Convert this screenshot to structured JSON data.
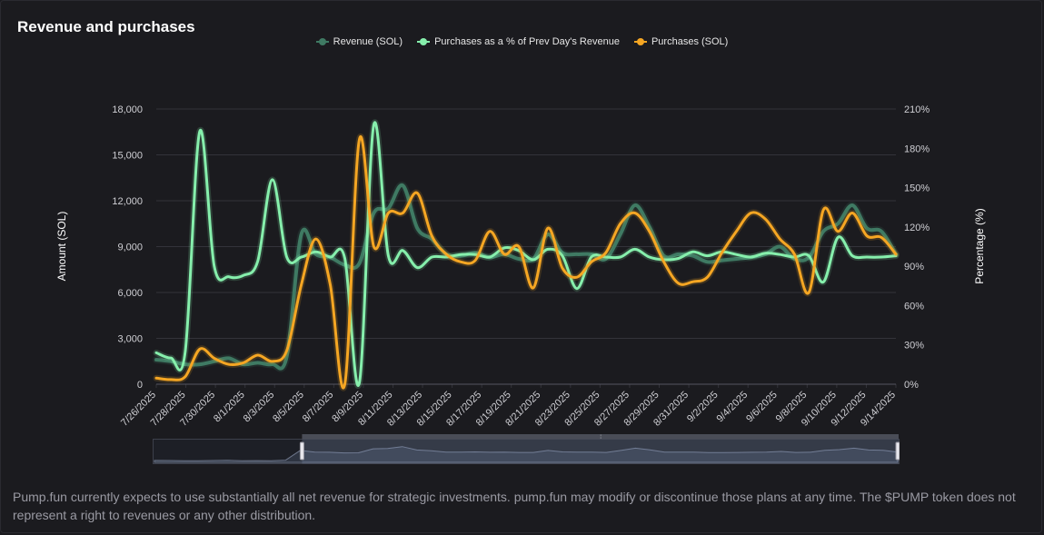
{
  "page": {
    "title": "Revenue and purchases"
  },
  "footnote": "Pump.fun currently expects to use substantially all net revenue for strategic investments. pump.fun may modify or discontinue those plans at any time. The $PUMP token does not represent a right to revenues or any other distribution.",
  "chart_data": {
    "type": "line",
    "title": "Revenue and purchases",
    "legend_position": "top-center",
    "grid": true,
    "y_left": {
      "label": "Amount (SOL)",
      "range": [
        0,
        18000
      ],
      "ticks": [
        "0",
        "3,000",
        "6,000",
        "9,000",
        "12,000",
        "15,000",
        "18,000"
      ]
    },
    "y_right": {
      "label": "Percentage (%)",
      "range": [
        0,
        210
      ],
      "ticks": [
        "0%",
        "30%",
        "60%",
        "90%",
        "120%",
        "150%",
        "180%",
        "210%"
      ]
    },
    "x_tick_labels": [
      "7/26/2025",
      "7/28/2025",
      "7/30/2025",
      "8/1/2025",
      "8/3/2025",
      "8/5/2025",
      "8/7/2025",
      "8/9/2025",
      "8/11/2025",
      "8/13/2025",
      "8/15/2025",
      "8/17/2025",
      "8/19/2025",
      "8/21/2025",
      "8/23/2025",
      "8/25/2025",
      "8/27/2025",
      "8/29/2025",
      "8/31/2025",
      "9/2/2025",
      "9/4/2025",
      "9/6/2025",
      "9/8/2025",
      "9/10/2025",
      "9/12/2025",
      "9/14/2025"
    ],
    "series": [
      {
        "name": "Revenue (SOL)",
        "axis": "left",
        "color": "#3f7a63",
        "values": [
          1600,
          1500,
          1300,
          1300,
          1500,
          1700,
          1300,
          1400,
          1300,
          1800,
          9800,
          8500,
          8300,
          7800,
          7900,
          11200,
          11500,
          13000,
          10200,
          9500,
          8500,
          8400,
          8600,
          8300,
          8500,
          8200,
          8200,
          9800,
          8600,
          8500,
          8500,
          8200,
          9800,
          11700,
          10300,
          8400,
          8500,
          8400,
          8000,
          8100,
          8200,
          8300,
          8500,
          9000,
          8200,
          8300,
          10000,
          10500,
          11700,
          10200,
          10000,
          8500
        ]
      },
      {
        "name": "Purchases as a % of Prev Day's Revenue",
        "axis": "right",
        "color": "#86efac",
        "values": [
          24,
          20,
          25,
          193,
          90,
          82,
          83,
          94,
          156,
          97,
          97,
          101,
          97,
          96,
          1,
          198,
          98,
          102,
          89,
          97,
          97,
          99,
          99,
          97,
          104,
          102,
          95,
          103,
          98,
          73,
          97,
          97,
          97,
          103,
          97,
          95,
          96,
          101,
          98,
          101,
          99,
          97,
          100,
          99,
          97,
          98,
          78,
          112,
          98,
          97,
          97,
          98
        ]
      },
      {
        "name": "Purchases (SOL)",
        "axis": "left",
        "color": "#f5a623",
        "values": [
          400,
          300,
          500,
          2300,
          1700,
          1300,
          1400,
          1900,
          1500,
          2200,
          6500,
          9500,
          6500,
          0,
          16000,
          9000,
          11200,
          11200,
          12500,
          9700,
          8500,
          8000,
          8100,
          10000,
          8500,
          9000,
          6300,
          10200,
          7600,
          7000,
          8000,
          8600,
          10500,
          11200,
          10000,
          8000,
          6600,
          6700,
          7000,
          8600,
          10000,
          11200,
          10800,
          9500,
          8500,
          6000,
          11400,
          10000,
          11200,
          9700,
          9600,
          8500
        ]
      }
    ]
  },
  "colors": {
    "background": "#1b1b1f",
    "grid": "#33333a",
    "axis_text": "#cfcfd4",
    "revenue": "#3f7a63",
    "percentage": "#86efac",
    "purchases": "#f5a623"
  },
  "slider": {
    "handle_glyph": "⦙",
    "selection_start_fraction": 0.2,
    "selection_end_fraction": 1.0
  }
}
